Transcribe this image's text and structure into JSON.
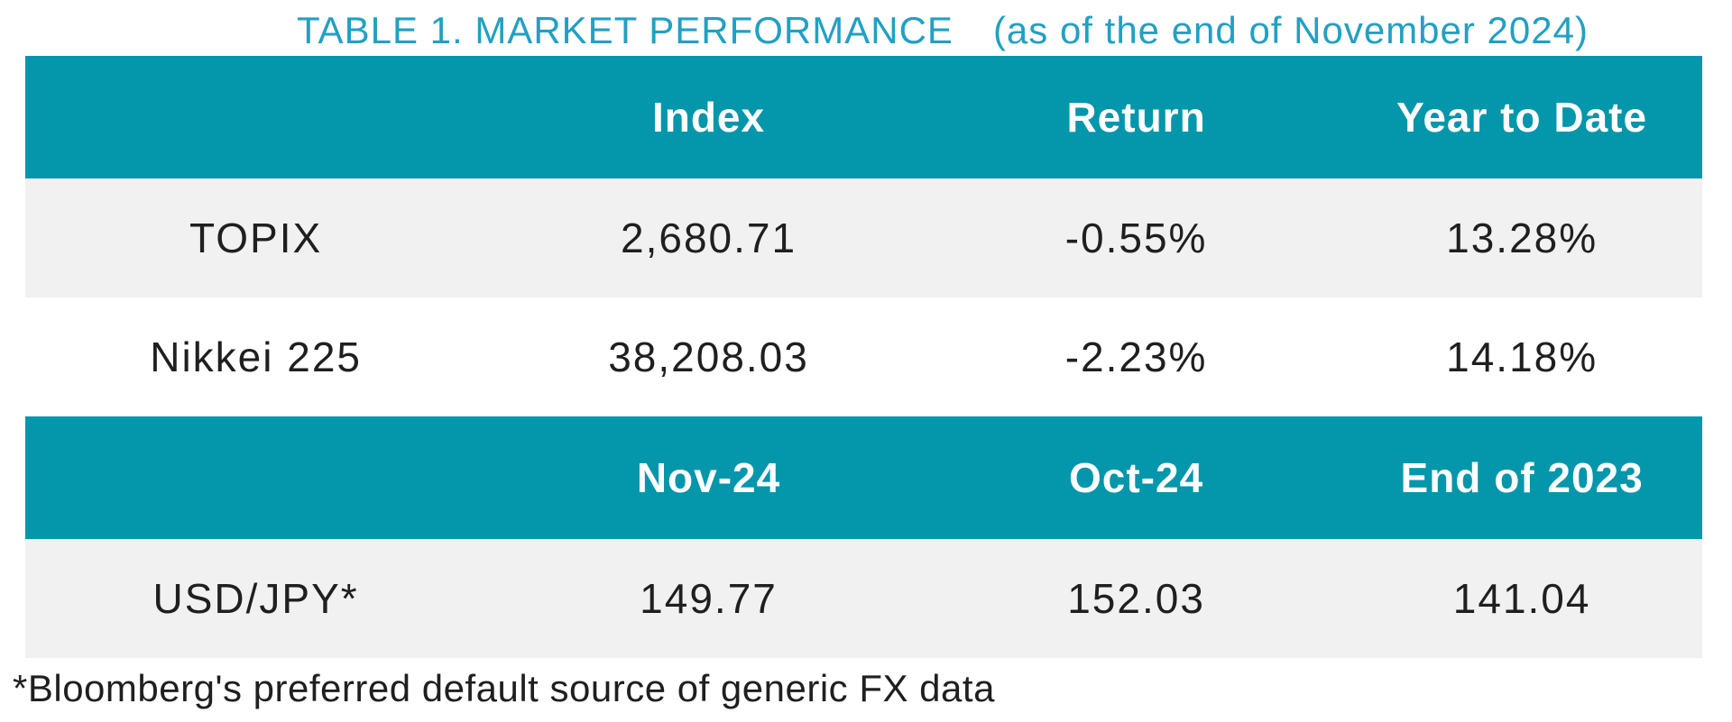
{
  "chart_data": {
    "type": "table",
    "title": "TABLE 1. MARKET PERFORMANCE",
    "subtitle": "(as of the end of November 2024)",
    "footnote": "*Bloomberg's preferred default source of generic FX data",
    "colors": {
      "header_band": "#0496ab",
      "header_text": "#ffffff",
      "title_text": "#21a0c4",
      "alt_row_background": "#f1f1f1",
      "body_text": "#1f1f1f"
    },
    "sections": [
      {
        "headers": [
          "",
          "Index",
          "Return",
          "Year to Date"
        ],
        "rows": [
          {
            "cells": [
              "TOPIX",
              "2,680.71",
              "-0.55%",
              "13.28%"
            ]
          },
          {
            "cells": [
              "Nikkei 225",
              "38,208.03",
              "-2.23%",
              "14.18%"
            ]
          }
        ]
      },
      {
        "headers": [
          "",
          "Nov-24",
          "Oct-24",
          "End of 2023"
        ],
        "rows": [
          {
            "cells": [
              "USD/JPY*",
              "149.77",
              "152.03",
              "141.04"
            ]
          }
        ]
      }
    ]
  }
}
